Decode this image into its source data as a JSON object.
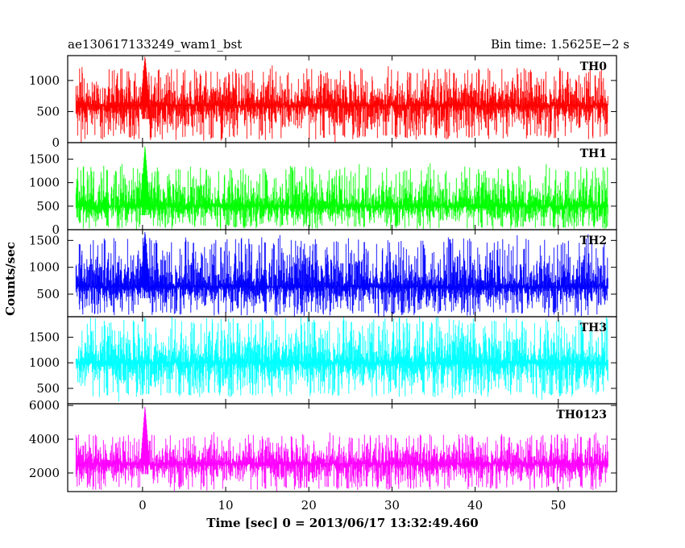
{
  "header": {
    "left": "ae130617133249_wam1_bst",
    "right": "Bin time: 1.5625E−2 s"
  },
  "axes": {
    "xlabel": "Time [sec] 0 = 2013/06/17 13:32:49.460",
    "ylabel": "Counts/sec"
  },
  "chart_data": {
    "type": "line",
    "title": "ae130617133249_wam1_bst",
    "subtitle": "Bin time: 1.5625E−2 s",
    "xlabel": "Time [sec] 0 = 2013/06/17 13:32:49.460",
    "ylabel": "Counts/sec",
    "xlim": [
      -9,
      57
    ],
    "x_range": [
      -8,
      56
    ],
    "x_ticks": [
      0,
      10,
      20,
      30,
      40,
      50
    ],
    "x_tick_labels": [
      "0",
      "10",
      "20",
      "30",
      "40",
      "50"
    ],
    "grid": false,
    "panels": [
      {
        "name": "TH0",
        "color": "#ff0000",
        "ylim": [
          0,
          1400
        ],
        "y_ticks": [
          0,
          500,
          1000
        ],
        "y_tick_labels": [
          "0",
          "500",
          "1000"
        ],
        "mean": 600,
        "noise_min": 50,
        "noise_max": 1200,
        "spike": {
          "x": 0.3,
          "peak": 1400
        }
      },
      {
        "name": "TH1",
        "color": "#00ff00",
        "ylim": [
          0,
          1850
        ],
        "y_ticks": [
          0,
          500,
          1000,
          1500
        ],
        "y_tick_labels": [
          "0",
          "500",
          "1000",
          "1500"
        ],
        "mean": 500,
        "noise_min": 20,
        "noise_max": 1350,
        "spike": {
          "x": 0.3,
          "peak": 1800
        }
      },
      {
        "name": "TH2",
        "color": "#0000ff",
        "ylim": [
          80,
          1700
        ],
        "y_ticks": [
          500,
          1000,
          1500
        ],
        "y_tick_labels": [
          "500",
          "1000",
          "1500"
        ],
        "mean": 640,
        "noise_min": 100,
        "noise_max": 1550,
        "spike": {
          "x": 0.3,
          "peak": 1680
        }
      },
      {
        "name": "TH3",
        "color": "#00ffff",
        "ylim": [
          200,
          1900
        ],
        "y_ticks": [
          500,
          1000,
          1500
        ],
        "y_tick_labels": [
          "500",
          "1000",
          "1500"
        ],
        "mean": 1000,
        "noise_min": 330,
        "noise_max": 1890,
        "spike": null
      },
      {
        "name": "TH0123",
        "color": "#ff00ff",
        "ylim": [
          900,
          6100
        ],
        "y_ticks": [
          2000,
          4000,
          6000
        ],
        "y_tick_labels": [
          "2000",
          "4000",
          "6000"
        ],
        "mean": 2550,
        "noise_min": 1000,
        "noise_max": 4300,
        "spike": {
          "x": 0.3,
          "peak": 6000
        }
      }
    ]
  }
}
